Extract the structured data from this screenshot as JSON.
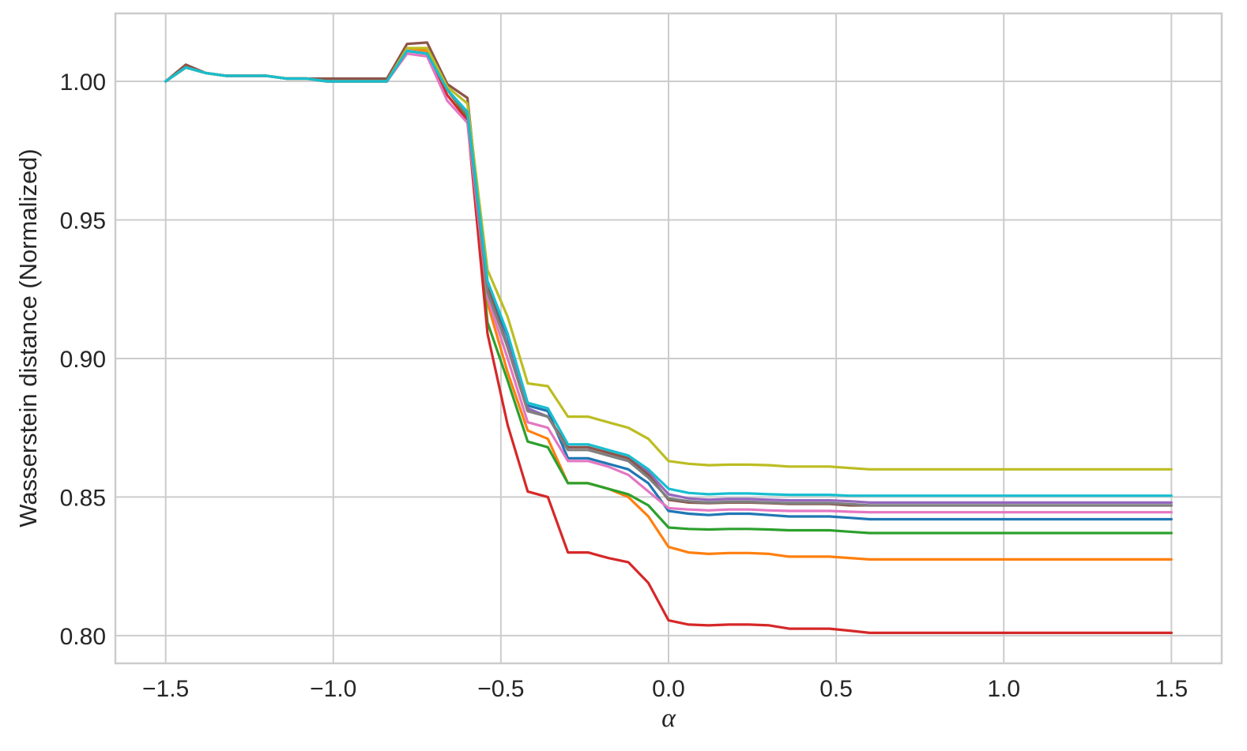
{
  "chart_data": {
    "type": "line",
    "title": "",
    "xlabel": "α",
    "ylabel": "Wasserstein distance (Normalized)",
    "xlim": [
      -1.65,
      1.65
    ],
    "ylim": [
      0.79,
      1.0245
    ],
    "grid": true,
    "legend": "none",
    "xticks": [
      -1.5,
      -1.0,
      -0.5,
      0.0,
      0.5,
      1.0,
      1.5
    ],
    "xtick_labels": [
      "−1.5",
      "−1.0",
      "−0.5",
      "0.0",
      "0.5",
      "1.0",
      "1.5"
    ],
    "yticks": [
      0.8,
      0.85,
      0.9,
      0.95,
      1.0
    ],
    "ytick_labels": [
      "0.80",
      "0.85",
      "0.90",
      "0.95",
      "1.00"
    ],
    "x": [
      -1.5,
      -1.44,
      -1.38,
      -1.32,
      -1.26,
      -1.2,
      -1.14,
      -1.08,
      -1.02,
      -0.96,
      -0.9,
      -0.84,
      -0.78,
      -0.72,
      -0.66,
      -0.6,
      -0.54,
      -0.48,
      -0.42,
      -0.36,
      -0.3,
      -0.24,
      -0.18,
      -0.12,
      -0.06,
      0.0,
      0.06,
      0.12,
      0.18,
      0.24,
      0.3,
      0.36,
      0.42,
      0.48,
      0.54,
      0.6,
      0.66,
      0.72,
      0.78,
      0.84,
      0.9,
      0.96,
      1.02,
      1.08,
      1.14,
      1.2,
      1.26,
      1.32,
      1.38,
      1.44,
      1.5
    ],
    "series": [
      {
        "color": "#1f77b4",
        "values": [
          1.0,
          1.005,
          1.003,
          1.002,
          1.002,
          1.002,
          1.001,
          1.001,
          1.0,
          1.0,
          1.0,
          1.0,
          1.011,
          1.01,
          0.997,
          0.988,
          0.926,
          0.908,
          0.883,
          0.881,
          0.864,
          0.864,
          0.862,
          0.86,
          0.855,
          0.845,
          0.844,
          0.8435,
          0.844,
          0.844,
          0.8435,
          0.843,
          0.843,
          0.843,
          0.8425,
          0.842,
          0.842,
          0.842,
          0.842,
          0.842,
          0.842,
          0.842,
          0.842,
          0.842,
          0.842,
          0.842,
          0.842,
          0.842,
          0.842,
          0.842,
          0.842
        ]
      },
      {
        "color": "#ff7f0e",
        "values": [
          1.0,
          1.005,
          1.003,
          1.002,
          1.002,
          1.002,
          1.001,
          1.001,
          1.0,
          1.0,
          1.0,
          1.0,
          1.012,
          1.011,
          0.997,
          0.988,
          0.92,
          0.895,
          0.874,
          0.871,
          0.855,
          0.855,
          0.853,
          0.85,
          0.843,
          0.832,
          0.83,
          0.8295,
          0.8298,
          0.8298,
          0.8295,
          0.8285,
          0.8285,
          0.8285,
          0.828,
          0.8275,
          0.8275,
          0.8275,
          0.8275,
          0.8275,
          0.8275,
          0.8275,
          0.8275,
          0.8275,
          0.8275,
          0.8275,
          0.8275,
          0.8275,
          0.8275,
          0.8275,
          0.8275
        ]
      },
      {
        "color": "#2ca02c",
        "values": [
          1.0,
          1.005,
          1.003,
          1.002,
          1.002,
          1.002,
          1.001,
          1.001,
          1.0,
          1.0,
          1.0,
          1.0,
          1.011,
          1.01,
          0.997,
          0.987,
          0.913,
          0.892,
          0.87,
          0.868,
          0.855,
          0.855,
          0.853,
          0.851,
          0.847,
          0.839,
          0.8385,
          0.8383,
          0.8385,
          0.8385,
          0.8383,
          0.838,
          0.838,
          0.838,
          0.8375,
          0.837,
          0.837,
          0.837,
          0.837,
          0.837,
          0.837,
          0.837,
          0.837,
          0.837,
          0.837,
          0.837,
          0.837,
          0.837,
          0.837,
          0.837,
          0.837
        ]
      },
      {
        "color": "#d62728",
        "values": [
          1.0,
          1.005,
          1.003,
          1.002,
          1.002,
          1.002,
          1.001,
          1.001,
          1.0,
          1.0,
          1.0,
          1.0,
          1.011,
          1.01,
          0.995,
          0.986,
          0.909,
          0.876,
          0.852,
          0.85,
          0.83,
          0.83,
          0.828,
          0.8265,
          0.819,
          0.8055,
          0.804,
          0.8037,
          0.804,
          0.804,
          0.8037,
          0.8025,
          0.8025,
          0.8025,
          0.8018,
          0.801,
          0.801,
          0.801,
          0.801,
          0.801,
          0.801,
          0.801,
          0.801,
          0.801,
          0.801,
          0.801,
          0.801,
          0.801,
          0.801,
          0.801,
          0.801
        ]
      },
      {
        "color": "#9467bd",
        "values": [
          1.0,
          1.005,
          1.003,
          1.002,
          1.002,
          1.002,
          1.001,
          1.001,
          1.0,
          1.0,
          1.0,
          1.0,
          1.011,
          1.01,
          0.997,
          0.988,
          0.925,
          0.905,
          0.882,
          0.879,
          0.868,
          0.868,
          0.866,
          0.864,
          0.859,
          0.851,
          0.8495,
          0.849,
          0.8493,
          0.8493,
          0.849,
          0.8488,
          0.8488,
          0.8488,
          0.8485,
          0.848,
          0.848,
          0.848,
          0.848,
          0.848,
          0.848,
          0.848,
          0.848,
          0.848,
          0.848,
          0.848,
          0.848,
          0.848,
          0.848,
          0.848,
          0.848
        ]
      },
      {
        "color": "#8c564b",
        "values": [
          1.0,
          1.006,
          1.003,
          1.002,
          1.002,
          1.002,
          1.001,
          1.001,
          1.001,
          1.001,
          1.001,
          1.001,
          1.0135,
          1.014,
          0.999,
          0.994,
          0.926,
          0.904,
          0.881,
          0.879,
          0.868,
          0.868,
          0.866,
          0.864,
          0.858,
          0.849,
          0.848,
          0.8478,
          0.848,
          0.848,
          0.8478,
          0.8475,
          0.8475,
          0.8475,
          0.847,
          0.847,
          0.847,
          0.847,
          0.847,
          0.847,
          0.847,
          0.847,
          0.847,
          0.847,
          0.847,
          0.847,
          0.847,
          0.847,
          0.847,
          0.847,
          0.847
        ]
      },
      {
        "color": "#e377c2",
        "values": [
          1.0,
          1.005,
          1.003,
          1.002,
          1.002,
          1.002,
          1.001,
          1.001,
          1.0,
          1.0,
          1.0,
          1.0,
          1.01,
          1.009,
          0.993,
          0.985,
          0.922,
          0.9,
          0.877,
          0.875,
          0.863,
          0.863,
          0.861,
          0.858,
          0.852,
          0.846,
          0.8455,
          0.8452,
          0.8455,
          0.8455,
          0.8452,
          0.845,
          0.845,
          0.845,
          0.8447,
          0.8445,
          0.8445,
          0.8445,
          0.8445,
          0.8445,
          0.8445,
          0.8445,
          0.8445,
          0.8445,
          0.8445,
          0.8445,
          0.8445,
          0.8445,
          0.8445,
          0.8445,
          0.8445
        ]
      },
      {
        "color": "#7f7f7f",
        "values": [
          1.0,
          1.005,
          1.003,
          1.002,
          1.002,
          1.002,
          1.001,
          1.001,
          1.0,
          1.0,
          1.0,
          1.0,
          1.011,
          1.01,
          0.997,
          0.988,
          0.924,
          0.904,
          0.881,
          0.879,
          0.867,
          0.867,
          0.865,
          0.863,
          0.857,
          0.8495,
          0.8485,
          0.848,
          0.8483,
          0.8483,
          0.848,
          0.8478,
          0.8478,
          0.8478,
          0.8475,
          0.847,
          0.847,
          0.847,
          0.847,
          0.847,
          0.847,
          0.847,
          0.847,
          0.847,
          0.847,
          0.847,
          0.847,
          0.847,
          0.847,
          0.847,
          0.847
        ]
      },
      {
        "color": "#bcbd22",
        "values": [
          1.0,
          1.005,
          1.003,
          1.002,
          1.002,
          1.002,
          1.001,
          1.001,
          1.0,
          1.0,
          1.0,
          1.0,
          1.012,
          1.012,
          0.998,
          0.992,
          0.932,
          0.915,
          0.891,
          0.89,
          0.879,
          0.879,
          0.877,
          0.875,
          0.871,
          0.863,
          0.862,
          0.8615,
          0.8617,
          0.8617,
          0.8615,
          0.861,
          0.861,
          0.861,
          0.8605,
          0.86,
          0.86,
          0.86,
          0.86,
          0.86,
          0.86,
          0.86,
          0.86,
          0.86,
          0.86,
          0.86,
          0.86,
          0.86,
          0.86,
          0.86,
          0.86
        ]
      },
      {
        "color": "#17becf",
        "values": [
          1.0,
          1.005,
          1.003,
          1.002,
          1.002,
          1.002,
          1.001,
          1.001,
          1.0,
          1.0,
          1.0,
          1.0,
          1.011,
          1.01,
          0.997,
          0.989,
          0.928,
          0.909,
          0.884,
          0.882,
          0.869,
          0.869,
          0.867,
          0.865,
          0.86,
          0.853,
          0.8515,
          0.851,
          0.8513,
          0.8513,
          0.851,
          0.8508,
          0.8508,
          0.8508,
          0.8505,
          0.8505,
          0.8505,
          0.8505,
          0.8505,
          0.8505,
          0.8505,
          0.8505,
          0.8505,
          0.8505,
          0.8505,
          0.8505,
          0.8505,
          0.8505,
          0.8505,
          0.8505,
          0.8505
        ]
      }
    ]
  }
}
